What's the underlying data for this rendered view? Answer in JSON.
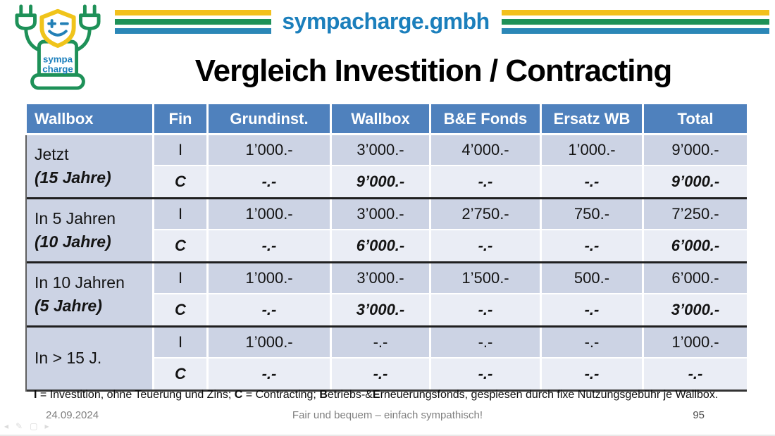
{
  "brand": {
    "name": "sympacharge.gmbh",
    "logo_line1": "sympa",
    "logo_line2": "charge",
    "colors": {
      "stripe_yellow": "#F2C01D",
      "stripe_green": "#1F9158",
      "stripe_blue": "#2B87B7",
      "brand_text_blue": "#1B7FBC",
      "header_blue": "#4F81BD",
      "row_dark": "#CCD3E4",
      "row_light": "#EAEDF5"
    }
  },
  "title": "Vergleich Investition / Contracting",
  "table": {
    "headers": [
      "Wallbox",
      "Fin",
      "Grundinst.",
      "Wallbox",
      "B&E Fonds",
      "Ersatz WB",
      "Total"
    ],
    "groups": [
      {
        "label": "Jetzt",
        "sublabel": "(15 Jahre)",
        "rows": [
          {
            "fin": "I",
            "style": "i",
            "values": [
              "1’000.-",
              "3’000.-",
              "4’000.-",
              "1’000.-",
              "9’000.-"
            ]
          },
          {
            "fin": "C",
            "style": "c",
            "values": [
              "-.-",
              "9’000.-",
              "-.-",
              "-.-",
              "9’000.-"
            ]
          }
        ]
      },
      {
        "label": "In 5 Jahren",
        "sublabel": "(10 Jahre)",
        "rows": [
          {
            "fin": "I",
            "style": "i",
            "values": [
              "1’000.-",
              "3’000.-",
              "2’750.-",
              "750.-",
              "7’250.-"
            ]
          },
          {
            "fin": "C",
            "style": "c",
            "values": [
              "-.-",
              "6’000.-",
              "-.-",
              "-.-",
              "6’000.-"
            ]
          }
        ]
      },
      {
        "label": "In 10 Jahren",
        "sublabel": "(5 Jahre)",
        "rows": [
          {
            "fin": "I",
            "style": "i",
            "values": [
              "1’000.-",
              "3’000.-",
              "1’500.-",
              "500.-",
              "6’000.-"
            ]
          },
          {
            "fin": "C",
            "style": "c",
            "values": [
              "-.-",
              "3’000.-",
              "-.-",
              "-.-",
              "3’000.-"
            ]
          }
        ]
      },
      {
        "label": "In > 15 J.",
        "sublabel": "",
        "rows": [
          {
            "fin": "I",
            "style": "i",
            "values": [
              "1’000.-",
              "-.-",
              "-.-",
              "-.-",
              "1’000.-"
            ]
          },
          {
            "fin": "C",
            "style": "c",
            "values": [
              "-.-",
              "-.-",
              "-.-",
              "-.-",
              "-.-"
            ]
          }
        ]
      }
    ]
  },
  "footnote": {
    "segments": [
      {
        "text": "I",
        "bold": true
      },
      {
        "text": " = Investition, ohne Teuerung und Zins; ",
        "bold": false
      },
      {
        "text": "C",
        "bold": true
      },
      {
        "text": " = Contracting; ",
        "bold": false
      },
      {
        "text": "B",
        "bold": true
      },
      {
        "text": "etriebs-&",
        "bold": false
      },
      {
        "text": "E",
        "bold": true
      },
      {
        "text": "rneuerungsfonds, gespiesen durch fixe Nutzungsgebühr je Wallbox.",
        "bold": false
      }
    ]
  },
  "footer": {
    "date": "24.09.2024",
    "tagline": "Fair und bequem – einfach sympathisch!",
    "page": "95"
  },
  "presenter_tools": {
    "icons": [
      {
        "name": "back-arrow-icon",
        "glyph": "◂"
      },
      {
        "name": "pen-icon",
        "glyph": "✎"
      },
      {
        "name": "frame-icon",
        "glyph": "▢"
      },
      {
        "name": "forward-arrow-icon",
        "glyph": "▸"
      }
    ]
  }
}
